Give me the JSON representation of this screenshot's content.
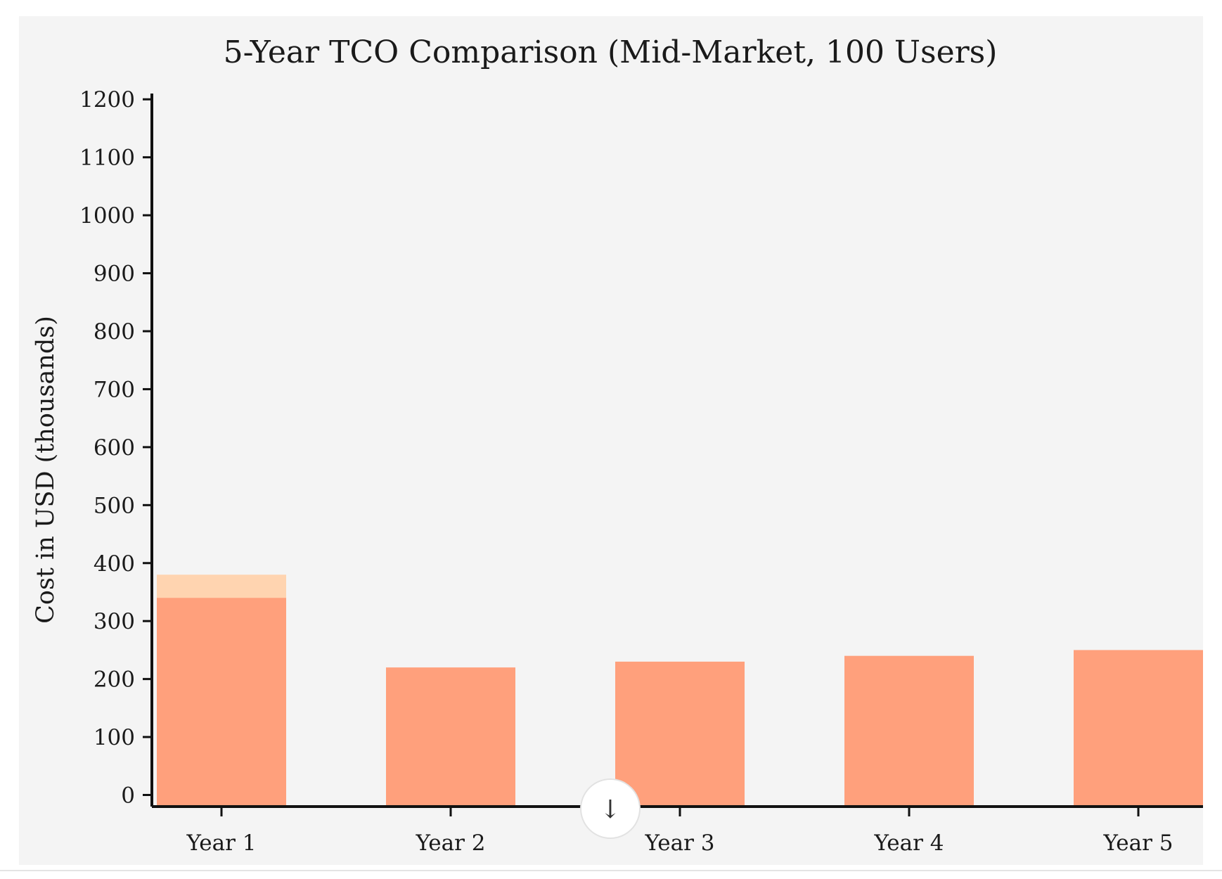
{
  "chart_data": {
    "type": "bar",
    "title": "5-Year TCO Comparison (Mid-Market, 100 Users)",
    "xlabel": "",
    "ylabel": "Cost in USD (thousands)",
    "ylim": [
      -20,
      1210
    ],
    "yticks": [
      0,
      100,
      200,
      300,
      400,
      500,
      600,
      700,
      800,
      900,
      1000,
      1100,
      1200
    ],
    "categories": [
      "Year 1",
      "Year 2",
      "Year 3",
      "Year 4",
      "Year 5"
    ],
    "grid": false,
    "legend": "none",
    "series": [
      {
        "values": [
          380,
          0,
          0,
          0,
          0
        ],
        "color": "#ffd4b0"
      },
      {
        "values": [
          340,
          220,
          230,
          240,
          250
        ],
        "color": "#ffa07c"
      }
    ]
  },
  "colors": {
    "panel_background": "#f4f4f4",
    "axis": "#111111"
  },
  "scroll_button": {
    "icon": "arrow-down-icon",
    "glyph": "↓"
  }
}
